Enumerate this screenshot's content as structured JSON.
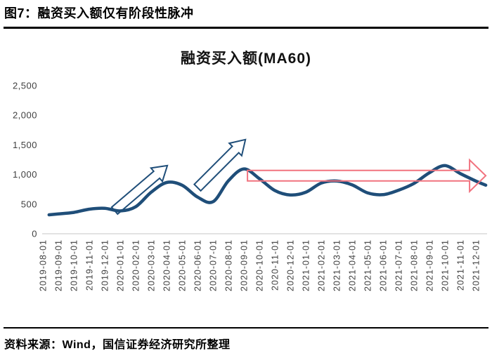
{
  "figure": {
    "header": "图7：融资买入额仅有阶段性脉冲",
    "source_note": "资料来源：Wind，国信证券经济研究所整理"
  },
  "chart_data": {
    "type": "line",
    "title": "融资买入额(MA60)",
    "xlabel": "",
    "ylabel": "",
    "ylim": [
      0,
      2500
    ],
    "yticks": [
      0,
      500,
      1000,
      1500,
      2000,
      2500
    ],
    "ytick_labels": [
      "0",
      "500",
      "1,000",
      "1,500",
      "2,000",
      "2,500"
    ],
    "grid": "x-baseline-only",
    "legend_position": "none",
    "categories": [
      "2019-08-01",
      "2019-09-01",
      "2019-10-01",
      "2019-11-01",
      "2019-12-01",
      "2020-01-01",
      "2020-02-01",
      "2020-03-01",
      "2020-04-01",
      "2020-05-01",
      "2020-06-01",
      "2020-07-01",
      "2020-08-01",
      "2020-09-01",
      "2020-10-01",
      "2020-11-01",
      "2020-12-01",
      "2021-01-01",
      "2021-02-01",
      "2021-03-01",
      "2021-04-01",
      "2021-05-01",
      "2021-06-01",
      "2021-07-01",
      "2021-08-01",
      "2021-09-01",
      "2021-10-01",
      "2021-11-01",
      "2021-12-01"
    ],
    "series": [
      {
        "name": "融资买入额(MA60)",
        "color": "#1F4E79",
        "values": [
          320,
          335,
          360,
          415,
          430,
          385,
          455,
          700,
          865,
          820,
          620,
          540,
          895,
          1095,
          930,
          730,
          655,
          700,
          855,
          890,
          825,
          690,
          660,
          735,
          850,
          1030,
          1150,
          1015,
          890
        ]
      }
    ],
    "line_end_value": 820,
    "line_end_month_offset": 28.64,
    "line_start_month_offset": 0.4,
    "annotations": [
      {
        "id": "up-trend-arrow-1",
        "type": "block-arrow",
        "color": "#1F4E79",
        "from": {
          "month": 4.64,
          "value": 390
        },
        "to": {
          "month": 8.05,
          "value": 1150
        }
      },
      {
        "id": "up-trend-arrow-2",
        "type": "block-arrow",
        "color": "#1F4E79",
        "from": {
          "month": 10.0,
          "value": 780
        },
        "to": {
          "month": 13.1,
          "value": 1590
        }
      },
      {
        "id": "sideways-range-arrow",
        "type": "horizontal-block-arrow",
        "color": "#F1737F",
        "from_month": 13.23,
        "to_month": 28.64,
        "center_value": 980,
        "body_half_value": 89,
        "head_half_value": 265
      }
    ],
    "axis_colors": {
      "baseline": "#D9D9D9",
      "tick_text": "#3F3F3F"
    }
  }
}
